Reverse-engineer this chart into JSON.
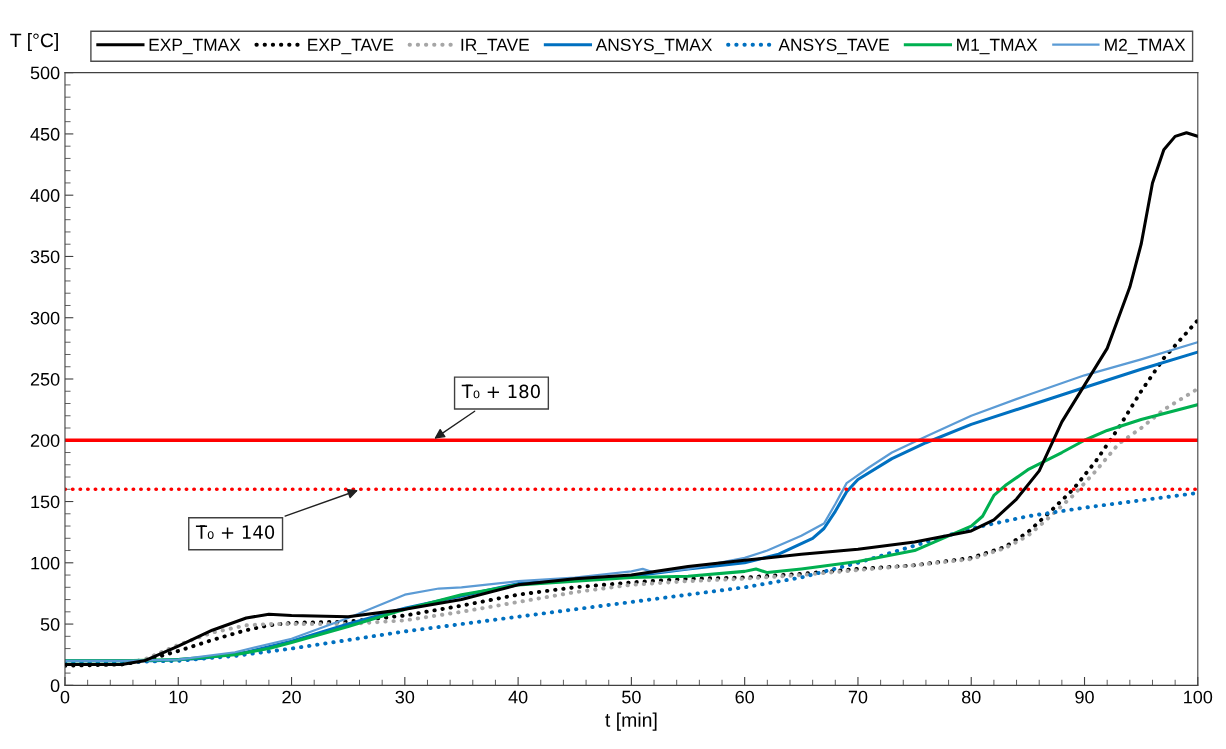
{
  "chart_data": {
    "type": "line",
    "xlabel": "t [min]",
    "ylabel": "T [°C]",
    "xlim": [
      0,
      100
    ],
    "xticks": [
      0,
      10,
      20,
      30,
      40,
      50,
      60,
      70,
      80,
      90,
      100
    ],
    "ylim": [
      0,
      500
    ],
    "yticks": [
      0,
      50,
      100,
      150,
      200,
      250,
      300,
      350,
      400,
      450,
      500
    ],
    "grid": false,
    "legend": "top",
    "marker": "none",
    "series": [
      {
        "name": "EXP_TMAX",
        "color": "#000000",
        "line_style": "solid",
        "x": [
          0,
          5,
          7,
          10,
          13,
          16,
          18,
          20,
          25,
          30,
          35,
          40,
          45,
          50,
          55,
          60,
          65,
          70,
          75,
          80,
          82,
          84,
          86,
          87,
          88,
          90,
          92,
          93,
          94,
          95,
          96,
          97,
          98,
          99,
          100
        ],
        "values": [
          17,
          17,
          20,
          32,
          45,
          55,
          58,
          57,
          56,
          62,
          70,
          82,
          87,
          90,
          97,
          102,
          107,
          111,
          117,
          126,
          135,
          152,
          175,
          195,
          215,
          245,
          275,
          300,
          325,
          360,
          410,
          437,
          448,
          451,
          448
        ]
      },
      {
        "name": "EXP_TAVE",
        "color": "#000000",
        "line_style": "dotted",
        "x": [
          0,
          5,
          7,
          10,
          13,
          16,
          18,
          20,
          25,
          30,
          35,
          40,
          45,
          50,
          55,
          60,
          65,
          70,
          75,
          80,
          83,
          85,
          87,
          89,
          91,
          93,
          95,
          97,
          100
        ],
        "values": [
          16,
          17,
          20,
          28,
          37,
          45,
          49,
          51,
          52,
          57,
          65,
          74,
          80,
          84,
          87,
          88,
          91,
          95,
          98,
          104,
          113,
          125,
          142,
          160,
          183,
          210,
          240,
          267,
          298
        ]
      },
      {
        "name": "IR_TAVE",
        "color": "#a6a6a6",
        "line_style": "dotted",
        "x": [
          0,
          5,
          7,
          10,
          13,
          16,
          18,
          20,
          25,
          30,
          35,
          40,
          45,
          50,
          55,
          60,
          65,
          70,
          75,
          80,
          83,
          85,
          87,
          89,
          91,
          93,
          95,
          97,
          100
        ],
        "values": [
          18,
          18,
          21,
          33,
          43,
          49,
          50,
          50,
          50,
          53,
          60,
          68,
          76,
          82,
          85,
          87,
          90,
          94,
          98,
          103,
          112,
          122,
          138,
          155,
          175,
          197,
          210,
          225,
          242
        ]
      },
      {
        "name": "ANSYS_TMAX",
        "color": "#0070c0",
        "line_style": "solid",
        "x": [
          0,
          5,
          8,
          12,
          16,
          20,
          25,
          30,
          35,
          40,
          45,
          50,
          55,
          60,
          63,
          66,
          67,
          68,
          69,
          70,
          73,
          76,
          80,
          85,
          90,
          95,
          100
        ],
        "values": [
          20,
          20,
          20,
          22,
          27,
          36,
          50,
          63,
          73,
          83,
          86,
          89,
          95,
          100,
          107,
          120,
          128,
          142,
          158,
          168,
          185,
          198,
          213,
          228,
          243,
          258,
          272
        ]
      },
      {
        "name": "ANSYS_TAVE",
        "color": "#0070c0",
        "line_style": "dotted",
        "x": [
          0,
          10,
          15,
          20,
          25,
          30,
          40,
          50,
          60,
          65,
          70,
          75,
          80,
          85,
          90,
          95,
          100
        ],
        "values": [
          18,
          20,
          24,
          30,
          37,
          44,
          56,
          68,
          80,
          88,
          100,
          114,
          128,
          138,
          145,
          151,
          157
        ]
      },
      {
        "name": "M1_TMAX",
        "color": "#00b050",
        "line_style": "solid",
        "x": [
          0,
          5,
          10,
          15,
          18,
          20,
          25,
          30,
          35,
          40,
          45,
          50,
          55,
          60,
          61,
          62,
          65,
          70,
          75,
          78,
          80,
          81,
          82,
          83,
          85,
          88,
          90,
          92,
          95,
          100
        ],
        "values": [
          20,
          20,
          21,
          25,
          30,
          35,
          48,
          62,
          74,
          82,
          85,
          88,
          89,
          93,
          95,
          92,
          95,
          101,
          110,
          122,
          130,
          138,
          155,
          163,
          176,
          190,
          200,
          208,
          217,
          229
        ]
      },
      {
        "name": "M2_TMAX",
        "color": "#5b9bd5",
        "line_style": "solid",
        "x": [
          0,
          5,
          10,
          15,
          20,
          25,
          30,
          33,
          35,
          40,
          45,
          50,
          51,
          52,
          55,
          60,
          62,
          65,
          67,
          68,
          69,
          71,
          73,
          76,
          80,
          85,
          90,
          95,
          100
        ],
        "values": [
          20,
          20,
          21,
          27,
          38,
          55,
          74,
          79,
          80,
          85,
          88,
          93,
          95,
          92,
          95,
          104,
          110,
          122,
          132,
          148,
          165,
          178,
          190,
          203,
          220,
          237,
          253,
          266,
          280
        ]
      }
    ],
    "ref_lines": [
      {
        "axis": "y",
        "value": 200,
        "color": "#ff0000",
        "line_style": "solid"
      },
      {
        "axis": "y",
        "value": 160,
        "color": "#ff0000",
        "line_style": "dotted"
      }
    ],
    "annotations": [
      {
        "text": "T̄₀ + 180",
        "x": 32.4,
        "y": 200
      },
      {
        "text": "T̄₀ + 140",
        "x": 26.1,
        "y": 160
      }
    ]
  }
}
